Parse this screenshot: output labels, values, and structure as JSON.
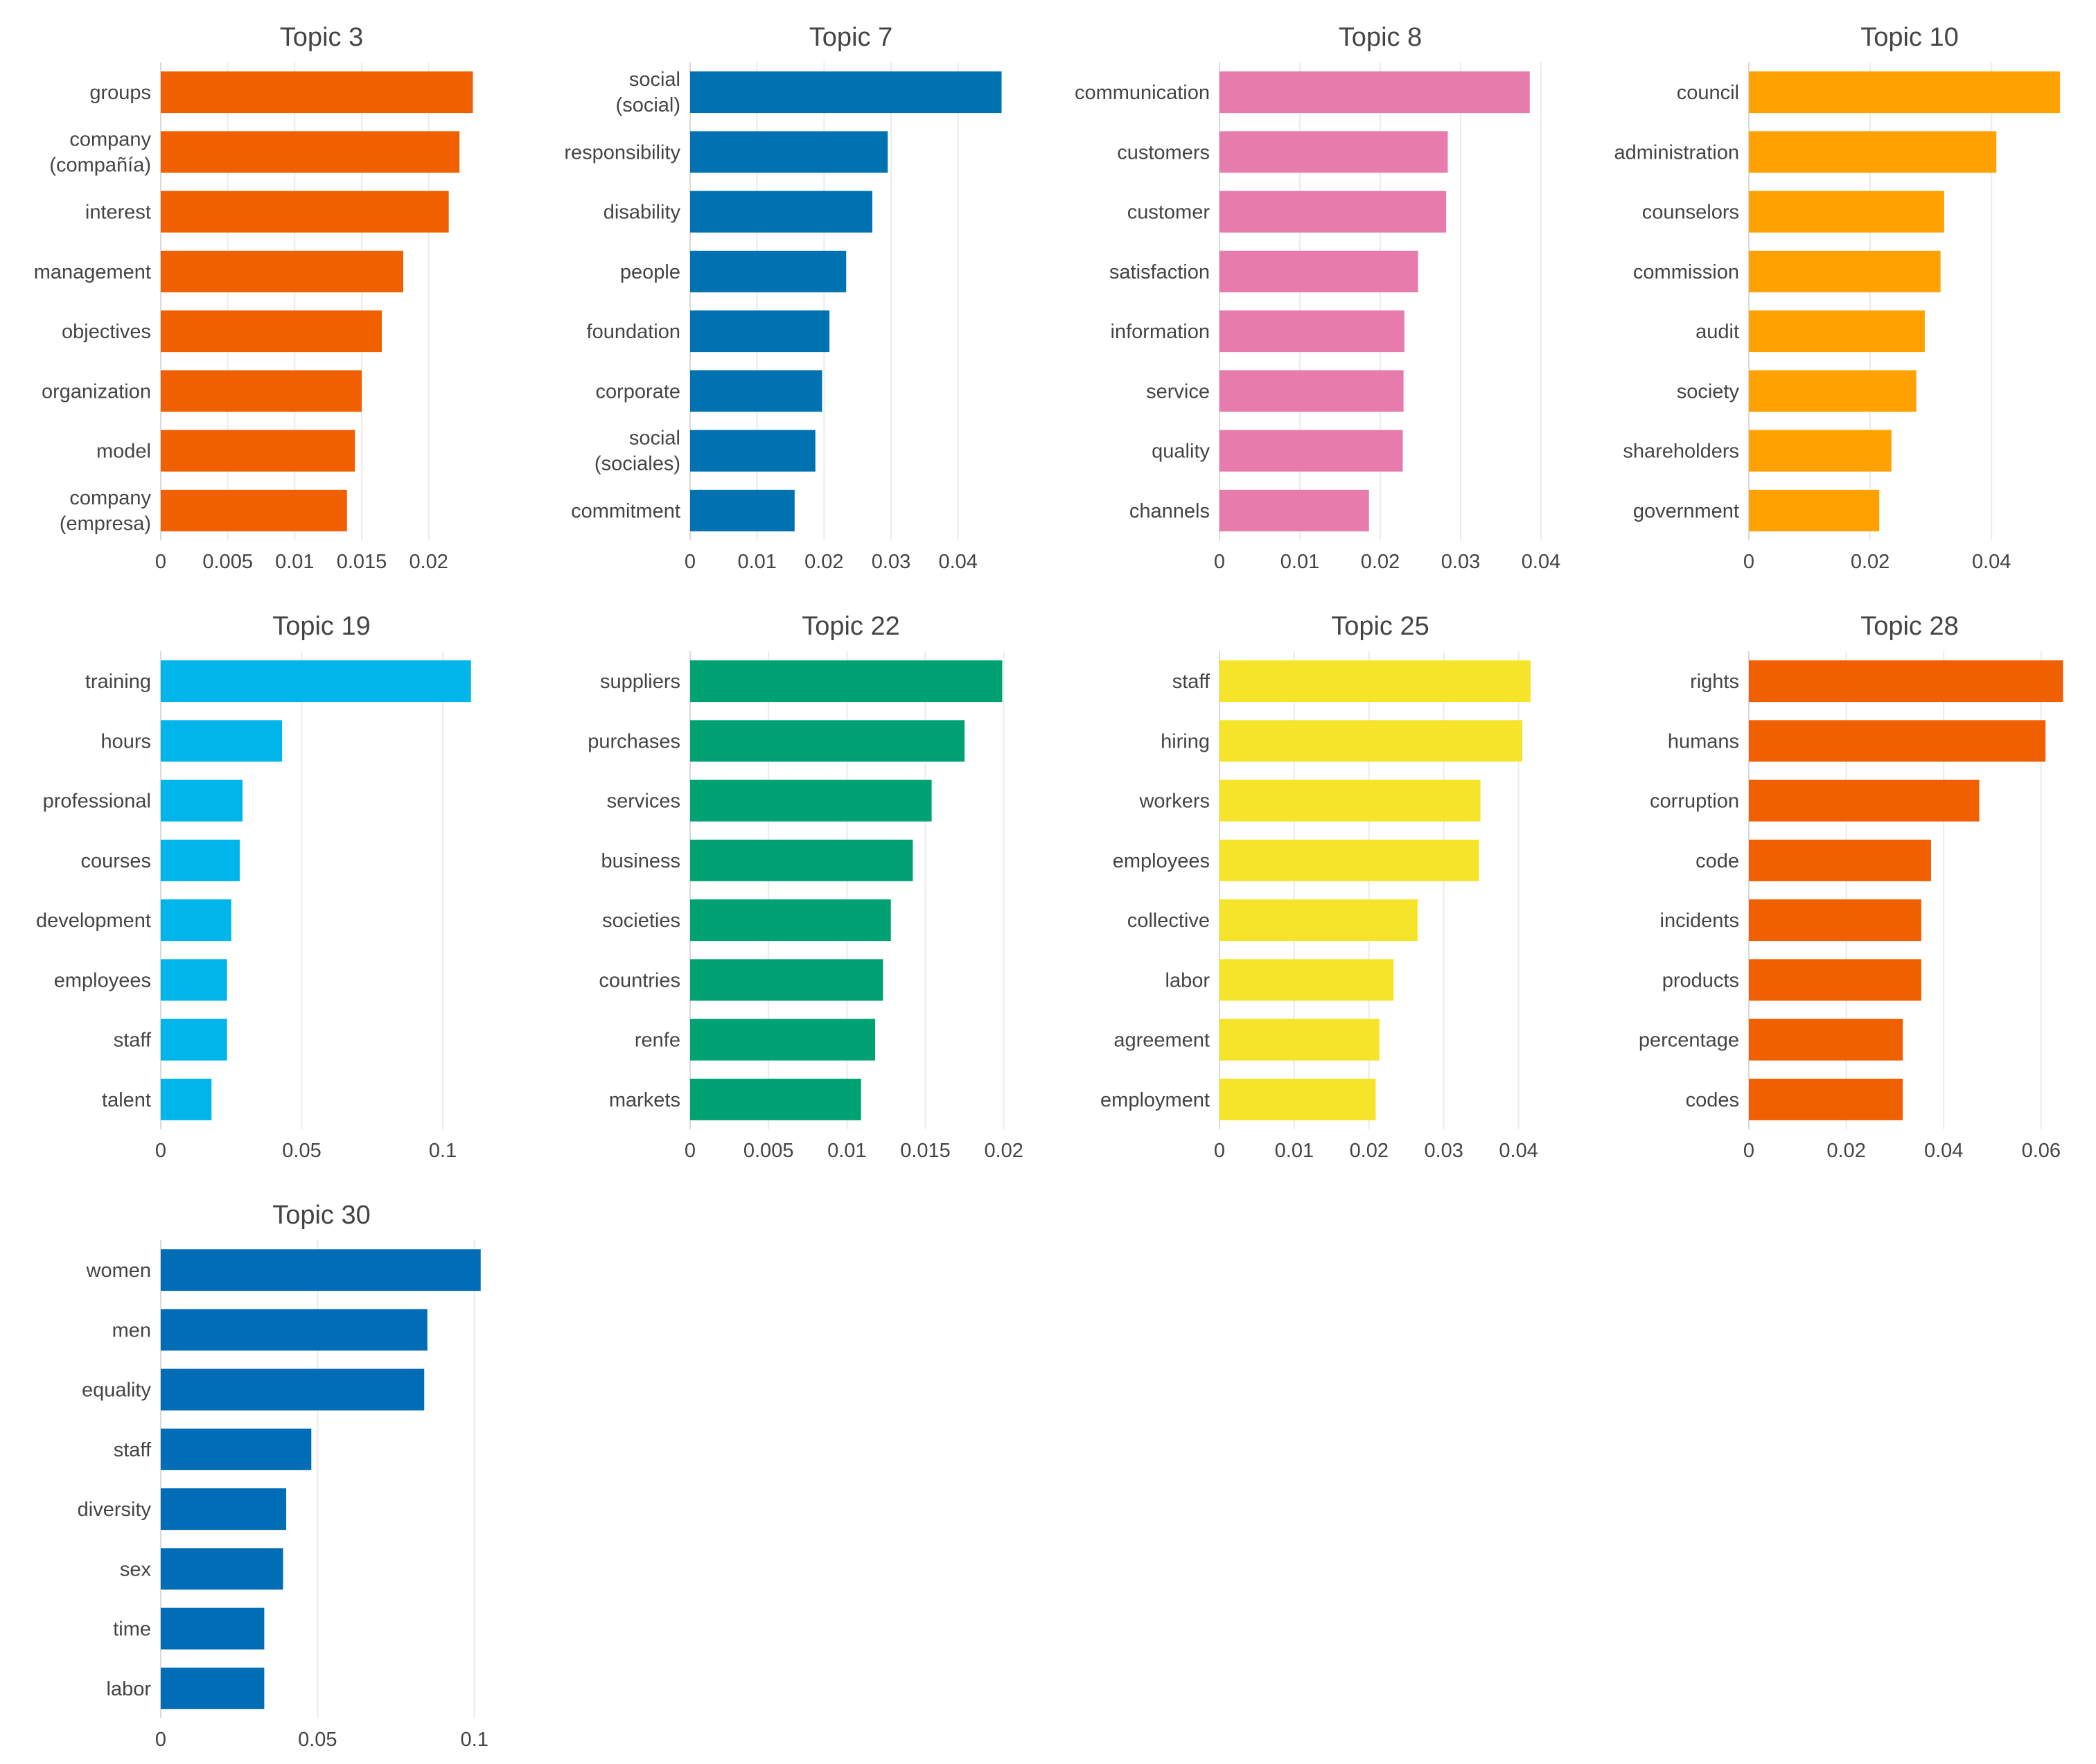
{
  "chart_data": [
    {
      "type": "bar",
      "orientation": "horizontal",
      "title": "Topic 3",
      "color": "#F05F00",
      "categories": [
        "groups",
        "company (compañía)",
        "interest",
        "management",
        "objectives",
        "organization",
        "model",
        "company (empresa)"
      ],
      "values": [
        0.0233,
        0.0223,
        0.0215,
        0.0181,
        0.0165,
        0.015,
        0.0145,
        0.0139
      ],
      "xlim": [
        0,
        0.024
      ],
      "xticks": [
        0,
        0.005,
        0.01,
        0.015,
        0.02
      ],
      "xtick_labels": [
        "0",
        "0.005",
        "0.01",
        "0.015",
        "0.02"
      ]
    },
    {
      "type": "bar",
      "orientation": "horizontal",
      "title": "Topic 7",
      "color": "#0072B2",
      "categories": [
        "social (social)",
        "responsibility",
        "disability",
        "people",
        "foundation",
        "corporate",
        "social (sociales)",
        "commitment"
      ],
      "values": [
        0.0465,
        0.0295,
        0.0272,
        0.0233,
        0.0208,
        0.0197,
        0.0187,
        0.0156
      ],
      "xlim": [
        0,
        0.048
      ],
      "xticks": [
        0,
        0.01,
        0.02,
        0.03,
        0.04
      ],
      "xtick_labels": [
        "0",
        "0.01",
        "0.02",
        "0.03",
        "0.04"
      ]
    },
    {
      "type": "bar",
      "orientation": "horizontal",
      "title": "Topic 8",
      "color": "#E67BAC",
      "categories": [
        "communication",
        "customers",
        "customer",
        "satisfaction",
        "information",
        "service",
        "quality",
        "channels"
      ],
      "values": [
        0.0386,
        0.0284,
        0.0282,
        0.0247,
        0.023,
        0.0229,
        0.0228,
        0.0186
      ],
      "xlim": [
        0,
        0.04
      ],
      "xticks": [
        0,
        0.01,
        0.02,
        0.03,
        0.04
      ],
      "xtick_labels": [
        "0",
        "0.01",
        "0.02",
        "0.03",
        "0.04"
      ]
    },
    {
      "type": "bar",
      "orientation": "horizontal",
      "title": "Topic 10",
      "color": "#FFA100",
      "categories": [
        "council",
        "administration",
        "counselors",
        "commission",
        "audit",
        "society",
        "shareholders",
        "government"
      ],
      "values": [
        0.0513,
        0.0408,
        0.0322,
        0.0316,
        0.029,
        0.0276,
        0.0235,
        0.0215
      ],
      "xlim": [
        0,
        0.053
      ],
      "xticks": [
        0,
        0.02,
        0.04
      ],
      "xtick_labels": [
        "0",
        "0.02",
        "0.04"
      ]
    },
    {
      "type": "bar",
      "orientation": "horizontal",
      "title": "Topic 19",
      "color": "#00B5EA",
      "categories": [
        "training",
        "hours",
        "professional",
        "courses",
        "development",
        "employees",
        "staff",
        "talent"
      ],
      "values": [
        0.11,
        0.043,
        0.029,
        0.028,
        0.025,
        0.0235,
        0.0235,
        0.018
      ],
      "xlim": [
        0,
        0.114
      ],
      "xticks": [
        0,
        0.05,
        0.1
      ],
      "xtick_labels": [
        "0",
        "0.05",
        "0.1"
      ]
    },
    {
      "type": "bar",
      "orientation": "horizontal",
      "title": "Topic 22",
      "color": "#00A274",
      "categories": [
        "suppliers",
        "purchases",
        "services",
        "business",
        "societies",
        "countries",
        "renfe",
        "markets"
      ],
      "values": [
        0.0199,
        0.0175,
        0.0154,
        0.0142,
        0.0128,
        0.0123,
        0.0118,
        0.0109
      ],
      "xlim": [
        0,
        0.0205
      ],
      "xticks": [
        0,
        0.005,
        0.01,
        0.015,
        0.02
      ],
      "xtick_labels": [
        "0",
        "0.005",
        "0.01",
        "0.015",
        "0.02"
      ]
    },
    {
      "type": "bar",
      "orientation": "horizontal",
      "title": "Topic 25",
      "color": "#F5E42A",
      "categories": [
        "staff",
        "hiring",
        "workers",
        "employees",
        "collective",
        "labor",
        "agreement",
        "employment"
      ],
      "values": [
        0.0416,
        0.0405,
        0.0349,
        0.0347,
        0.0265,
        0.0233,
        0.0214,
        0.0209
      ],
      "xlim": [
        0,
        0.043
      ],
      "xticks": [
        0,
        0.01,
        0.02,
        0.03,
        0.04
      ],
      "xtick_labels": [
        "0",
        "0.01",
        "0.02",
        "0.03",
        "0.04"
      ]
    },
    {
      "type": "bar",
      "orientation": "horizontal",
      "title": "Topic 28",
      "color": "#F05F00",
      "categories": [
        "rights",
        "humans",
        "corruption",
        "code",
        "incidents",
        "products",
        "percentage",
        "codes"
      ],
      "values": [
        0.0645,
        0.0609,
        0.0473,
        0.0374,
        0.0354,
        0.0354,
        0.0316,
        0.0316
      ],
      "xlim": [
        0,
        0.066
      ],
      "xticks": [
        0,
        0.02,
        0.04,
        0.06
      ],
      "xtick_labels": [
        "0",
        "0.02",
        "0.04",
        "0.06"
      ]
    },
    {
      "type": "bar",
      "orientation": "horizontal",
      "title": "Topic 30",
      "color": "#006DB6",
      "categories": [
        "women",
        "men",
        "equality",
        "staff",
        "diversity",
        "sex",
        "time",
        "labor"
      ],
      "values": [
        0.102,
        0.085,
        0.084,
        0.048,
        0.04,
        0.039,
        0.033,
        0.033
      ],
      "xlim": [
        0,
        0.1025
      ],
      "xticks": [
        0,
        0.05,
        0.1
      ],
      "xtick_labels": [
        "0",
        "0.05",
        "0.1"
      ]
    }
  ]
}
